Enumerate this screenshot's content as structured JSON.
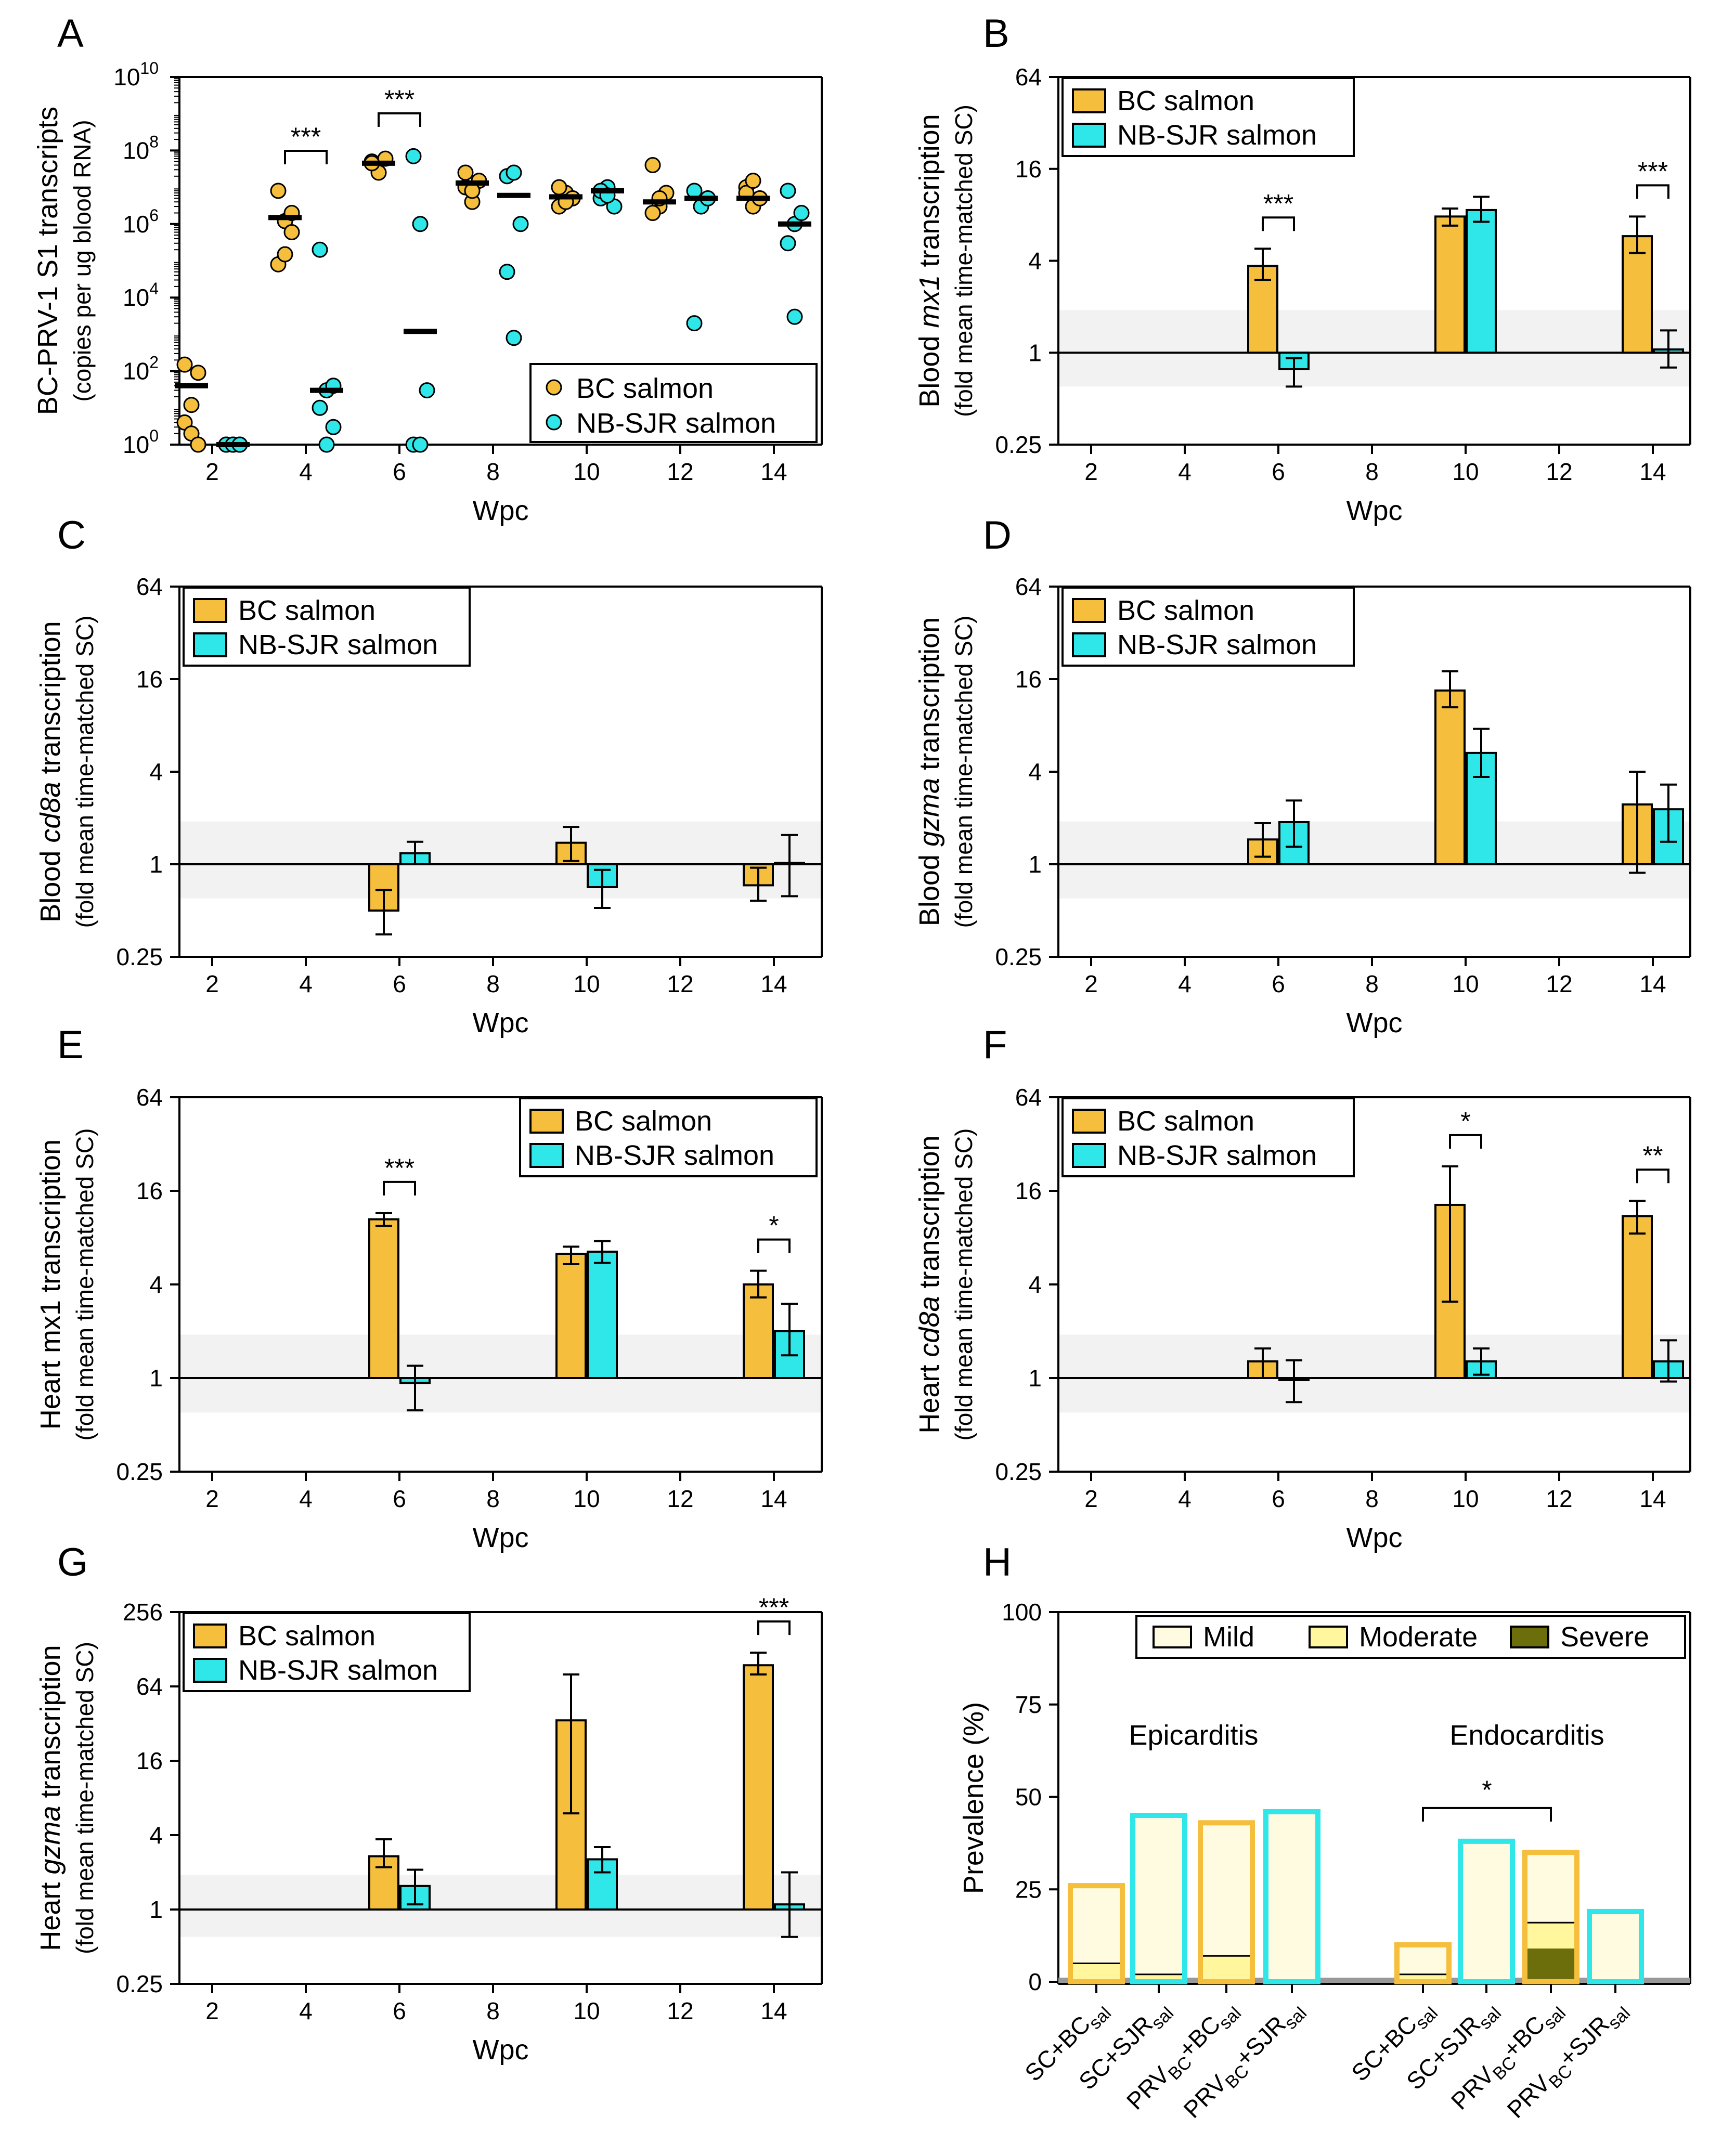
{
  "colors": {
    "bc": "#F5BE3C",
    "nb": "#2FE6E8",
    "mild": "#FEFBE0",
    "moderate": "#FFF69E",
    "severe": "#6B6E0A",
    "axis": "#000000"
  },
  "legend": {
    "bc": "BC salmon",
    "nb": "NB-SJR salmon"
  },
  "hlegend": {
    "mild": "Mild",
    "moderate": "Moderate",
    "severe": "Severe"
  },
  "chart_data": [
    {
      "id": "A",
      "letter": "A",
      "type": "scatter",
      "scale": "log10",
      "title": "",
      "ylabel": "BC-PRV-1 S1 transcripts",
      "ylabel2": "(copies per ug blood RNA)",
      "xlabel": "Wpc",
      "ylim": [
        1,
        10000000000
      ],
      "ytick_values": [
        1,
        100,
        10000,
        1000000,
        100000000,
        10000000000
      ],
      "ytick_exp": [
        "0",
        "2",
        "4",
        "6",
        "8",
        "10"
      ],
      "ytick_base": "10",
      "x": [
        2,
        4,
        6,
        8,
        10,
        12,
        14
      ],
      "series": [
        {
          "name": "BC salmon",
          "points": [
            [
              4,
              12,
              90,
              150,
              2,
              1
            ],
            [
              8000000,
              1200000,
              2000000,
              80000,
              150000,
              600000
            ],
            [
              50000000,
              25000000,
              60000000,
              45000000
            ],
            [
              10000000,
              4000000,
              15000000,
              25000000,
              8000000
            ],
            [
              3000000,
              7000000,
              5000000,
              10000000,
              4000000
            ],
            [
              40000000,
              3000000,
              7000000,
              2000000,
              5000000
            ],
            [
              10000000,
              3000000,
              5000000,
              7000000,
              15000000
            ]
          ],
          "median": [
            40,
            1500000,
            45000000,
            13000000,
            5500000,
            4000000,
            5000000
          ]
        },
        {
          "name": "NB-SJR salmon",
          "points": [
            [
              1,
              1,
              1,
              1,
              1,
              1
            ],
            [
              200000,
              30,
              40,
              10,
              1,
              3
            ],
            [
              70000000,
              1000000,
              30,
              1,
              1
            ],
            [
              20000000,
              25000000,
              1000000,
              50000,
              800
            ],
            [
              5000000,
              10000000,
              3000000,
              8000000,
              6000000
            ],
            [
              8000000,
              3000000,
              5000000,
              2000
            ],
            [
              8000000,
              1000000,
              2000000,
              300000,
              3000
            ]
          ],
          "median": [
            1,
            30,
            1200,
            6000000,
            8000000,
            5000000,
            1000000
          ]
        }
      ],
      "annotations": [
        {
          "x": 4,
          "text": "***"
        },
        {
          "x": 6,
          "text": "***"
        }
      ]
    },
    {
      "id": "B",
      "letter": "B",
      "type": "bar",
      "scale": "log2",
      "ylabel": "Blood mx1 transcription",
      "ylabel_parts": [
        "Blood ",
        "mx1",
        " transcription"
      ],
      "ylabel2": "(fold mean time-matched SC)",
      "xlabel": "Wpc",
      "ylim": [
        0.25,
        64
      ],
      "ytick_values": [
        0.25,
        1,
        4,
        16,
        64
      ],
      "ytick_labels": [
        "0.25",
        "1",
        "4",
        "16",
        "64"
      ],
      "x": [
        2,
        4,
        6,
        8,
        10,
        12,
        14
      ],
      "band": [
        0.6,
        1.9
      ],
      "series": [
        {
          "name": "BC salmon",
          "values": [
            null,
            null,
            3.7,
            null,
            7.8,
            null,
            5.8
          ],
          "err": [
            null,
            null,
            [
              3.0,
              4.8
            ],
            null,
            [
              6.8,
              8.8
            ],
            null,
            [
              4.5,
              7.8
            ]
          ]
        },
        {
          "name": "NB-SJR salmon",
          "values": [
            null,
            null,
            0.78,
            null,
            8.6,
            null,
            1.05
          ],
          "err": [
            null,
            null,
            [
              0.6,
              0.92
            ],
            null,
            [
              7.2,
              10.5
            ],
            null,
            [
              0.8,
              1.4
            ]
          ]
        }
      ],
      "annotations": [
        {
          "x": 6,
          "text": "***"
        },
        {
          "x": 14,
          "text": "***"
        }
      ]
    },
    {
      "id": "C",
      "letter": "C",
      "type": "bar",
      "scale": "log2",
      "ylabel": "Blood cd8a transcription",
      "ylabel_parts": [
        "Blood ",
        "cd8a",
        " transcription"
      ],
      "ylabel2": "(fold mean time-matched SC)",
      "xlabel": "Wpc",
      "ylim": [
        0.25,
        64
      ],
      "ytick_values": [
        0.25,
        1,
        4,
        16,
        64
      ],
      "ytick_labels": [
        "0.25",
        "1",
        "4",
        "16",
        "64"
      ],
      "x": [
        2,
        4,
        6,
        8,
        10,
        12,
        14
      ],
      "band": [
        0.6,
        1.9
      ],
      "series": [
        {
          "name": "BC salmon",
          "values": [
            null,
            null,
            0.5,
            null,
            1.38,
            null,
            0.73
          ],
          "err": [
            null,
            null,
            [
              0.35,
              0.68
            ],
            null,
            [
              1.05,
              1.75
            ],
            null,
            [
              0.58,
              0.95
            ]
          ]
        },
        {
          "name": "NB-SJR salmon",
          "values": [
            null,
            null,
            1.18,
            null,
            0.71,
            null,
            1.02
          ],
          "err": [
            null,
            null,
            [
              1.0,
              1.4
            ],
            null,
            [
              0.52,
              0.92
            ],
            null,
            [
              0.62,
              1.55
            ]
          ]
        }
      ],
      "annotations": []
    },
    {
      "id": "D",
      "letter": "D",
      "type": "bar",
      "scale": "log2",
      "ylabel": "Blood gzma transcription",
      "ylabel_parts": [
        "Blood ",
        "gzma",
        " transcription"
      ],
      "ylabel2": "(fold mean time-matched SC)",
      "xlabel": "Wpc",
      "ylim": [
        0.25,
        64
      ],
      "ytick_values": [
        0.25,
        1,
        4,
        16,
        64
      ],
      "ytick_labels": [
        "0.25",
        "1",
        "4",
        "16",
        "64"
      ],
      "x": [
        2,
        4,
        6,
        8,
        10,
        12,
        14
      ],
      "band": [
        0.6,
        1.9
      ],
      "series": [
        {
          "name": "BC salmon",
          "values": [
            null,
            null,
            1.45,
            null,
            13.5,
            null,
            2.45
          ],
          "err": [
            null,
            null,
            [
              1.12,
              1.85
            ],
            null,
            [
              10.5,
              18.0
            ],
            null,
            [
              0.88,
              4.0
            ]
          ]
        },
        {
          "name": "NB-SJR salmon",
          "values": [
            null,
            null,
            1.88,
            null,
            5.3,
            null,
            2.28
          ],
          "err": [
            null,
            null,
            [
              1.3,
              2.6
            ],
            null,
            [
              3.7,
              7.6
            ],
            null,
            [
              1.4,
              3.3
            ]
          ]
        }
      ],
      "annotations": []
    },
    {
      "id": "E",
      "letter": "E",
      "type": "bar",
      "scale": "log2",
      "ylabel": "Heart mx1 transcription",
      "ylabel_parts": [
        "Heart mx1 transcription"
      ],
      "ylabel2": "(fold mean time-matched SC)",
      "xlabel": "Wpc",
      "ylim": [
        0.25,
        64
      ],
      "ytick_values": [
        0.25,
        1,
        4,
        16,
        64
      ],
      "ytick_labels": [
        "0.25",
        "1",
        "4",
        "16",
        "64"
      ],
      "x": [
        2,
        4,
        6,
        8,
        10,
        12,
        14
      ],
      "band": [
        0.6,
        1.9
      ],
      "series": [
        {
          "name": "BC salmon",
          "values": [
            null,
            null,
            10.5,
            null,
            6.3,
            null,
            4.0
          ],
          "err": [
            null,
            null,
            [
              9.5,
              11.5
            ],
            null,
            [
              5.4,
              7.0
            ],
            null,
            [
              3.3,
              4.9
            ]
          ]
        },
        {
          "name": "NB-SJR salmon",
          "values": [
            null,
            null,
            0.93,
            null,
            6.5,
            null,
            2.0
          ],
          "err": [
            null,
            null,
            [
              0.62,
              1.2
            ],
            null,
            [
              5.5,
              7.6
            ],
            null,
            [
              1.4,
              3.0
            ]
          ]
        }
      ],
      "annotations": [
        {
          "x": 6,
          "text": "***"
        },
        {
          "x": 14,
          "text": "*"
        }
      ]
    },
    {
      "id": "F",
      "letter": "F",
      "type": "bar",
      "scale": "log2",
      "ylabel": "Heart cd8a transcription",
      "ylabel_parts": [
        "Heart ",
        "cd8a",
        " transcription"
      ],
      "ylabel2": "(fold mean time-matched SC)",
      "xlabel": "Wpc",
      "ylim": [
        0.25,
        64
      ],
      "ytick_values": [
        0.25,
        1,
        4,
        16,
        64
      ],
      "ytick_labels": [
        "0.25",
        "1",
        "4",
        "16",
        "64"
      ],
      "x": [
        2,
        4,
        6,
        8,
        10,
        12,
        14
      ],
      "band": [
        0.6,
        1.9
      ],
      "series": [
        {
          "name": "BC salmon",
          "values": [
            null,
            null,
            1.28,
            null,
            13.0,
            null,
            11.0
          ],
          "err": [
            null,
            null,
            [
              1.0,
              1.55
            ],
            null,
            [
              3.1,
              23.0
            ],
            null,
            [
              8.5,
              13.8
            ]
          ]
        },
        {
          "name": "NB-SJR salmon",
          "values": [
            null,
            null,
            0.97,
            null,
            1.28,
            null,
            1.28
          ],
          "err": [
            null,
            null,
            [
              0.7,
              1.3
            ],
            null,
            [
              1.05,
              1.55
            ],
            null,
            [
              0.95,
              1.75
            ]
          ]
        }
      ],
      "annotations": [
        {
          "x": 10,
          "text": "*"
        },
        {
          "x": 14,
          "text": "**"
        }
      ]
    },
    {
      "id": "G",
      "letter": "G",
      "type": "bar",
      "scale": "log2",
      "ylabel": "Heart gzma transcription",
      "ylabel_parts": [
        "Heart ",
        "gzma",
        " transcription"
      ],
      "ylabel2": "(fold mean time-matched SC)",
      "xlabel": "Wpc",
      "ylim": [
        0.25,
        256
      ],
      "ytick_values": [
        0.25,
        1,
        4,
        16,
        64,
        256
      ],
      "ytick_labels": [
        "0.25",
        "1",
        "4",
        "16",
        "64",
        "256"
      ],
      "x": [
        2,
        4,
        6,
        8,
        10,
        12,
        14
      ],
      "band": [
        0.6,
        1.9
      ],
      "series": [
        {
          "name": "BC salmon",
          "values": [
            null,
            null,
            2.7,
            null,
            34.0,
            null,
            95.0
          ],
          "err": [
            null,
            null,
            [
              2.2,
              3.7
            ],
            null,
            [
              6.0,
              80.0
            ],
            null,
            [
              80.0,
              120.0
            ]
          ]
        },
        {
          "name": "NB-SJR salmon",
          "values": [
            null,
            null,
            1.55,
            null,
            2.55,
            null,
            1.1
          ],
          "err": [
            null,
            null,
            [
              1.1,
              2.1
            ],
            null,
            [
              2.0,
              3.2
            ],
            null,
            [
              0.6,
              2.0
            ]
          ]
        }
      ],
      "annotations": [
        {
          "x": 14,
          "text": "***"
        }
      ]
    },
    {
      "id": "H",
      "letter": "H",
      "type": "bar",
      "ylabel": "Prevalence (%)",
      "ylim": [
        0,
        100
      ],
      "ytick_values": [
        0,
        25,
        50,
        75,
        100
      ],
      "ytick_labels": [
        "0",
        "25",
        "50",
        "75",
        "100"
      ],
      "group_titles": [
        "Epicarditis",
        "Endocarditis"
      ],
      "categories": [
        {
          "prefix": "SC+BC",
          "sub": "sal",
          "pre_sub": "",
          "after": "",
          "outline": "bc",
          "total": 26,
          "mod_top": 5,
          "severe": 0
        },
        {
          "prefix": "SC+SJR",
          "sub": "sal",
          "pre_sub": "",
          "after": "",
          "outline": "nb",
          "total": 45,
          "mod_top": 2,
          "severe": 0
        },
        {
          "prefix": "PRV",
          "sub": "BC",
          "pre_sub": "BC",
          "after": "+BC",
          "sub2": "sal",
          "outline": "bc",
          "total": 43,
          "mod_top": 7,
          "severe": 0
        },
        {
          "prefix": "PRV",
          "sub": "BC",
          "pre_sub": "BC",
          "after": "+SJR",
          "sub2": "sal",
          "outline": "nb",
          "total": 46,
          "mod_top": 0,
          "severe": 0
        },
        {
          "prefix": "SC+BC",
          "sub": "sal",
          "pre_sub": "",
          "after": "",
          "outline": "bc",
          "total": 10,
          "mod_top": 2,
          "severe": 0
        },
        {
          "prefix": "SC+SJR",
          "sub": "sal",
          "pre_sub": "",
          "after": "",
          "outline": "nb",
          "total": 38,
          "mod_top": 0,
          "severe": 0
        },
        {
          "prefix": "PRV",
          "sub": "BC",
          "pre_sub": "BC",
          "after": "+BC",
          "sub2": "sal",
          "outline": "bc",
          "total": 35,
          "mod_top": 16,
          "severe": 9
        },
        {
          "prefix": "PRV",
          "sub": "BC",
          "pre_sub": "BC",
          "after": "+SJR",
          "sub2": "sal",
          "outline": "nb",
          "total": 19,
          "mod_top": 0,
          "severe": 0
        }
      ],
      "annotations": [
        {
          "from": 4,
          "to": 6,
          "text": "*"
        }
      ]
    }
  ]
}
